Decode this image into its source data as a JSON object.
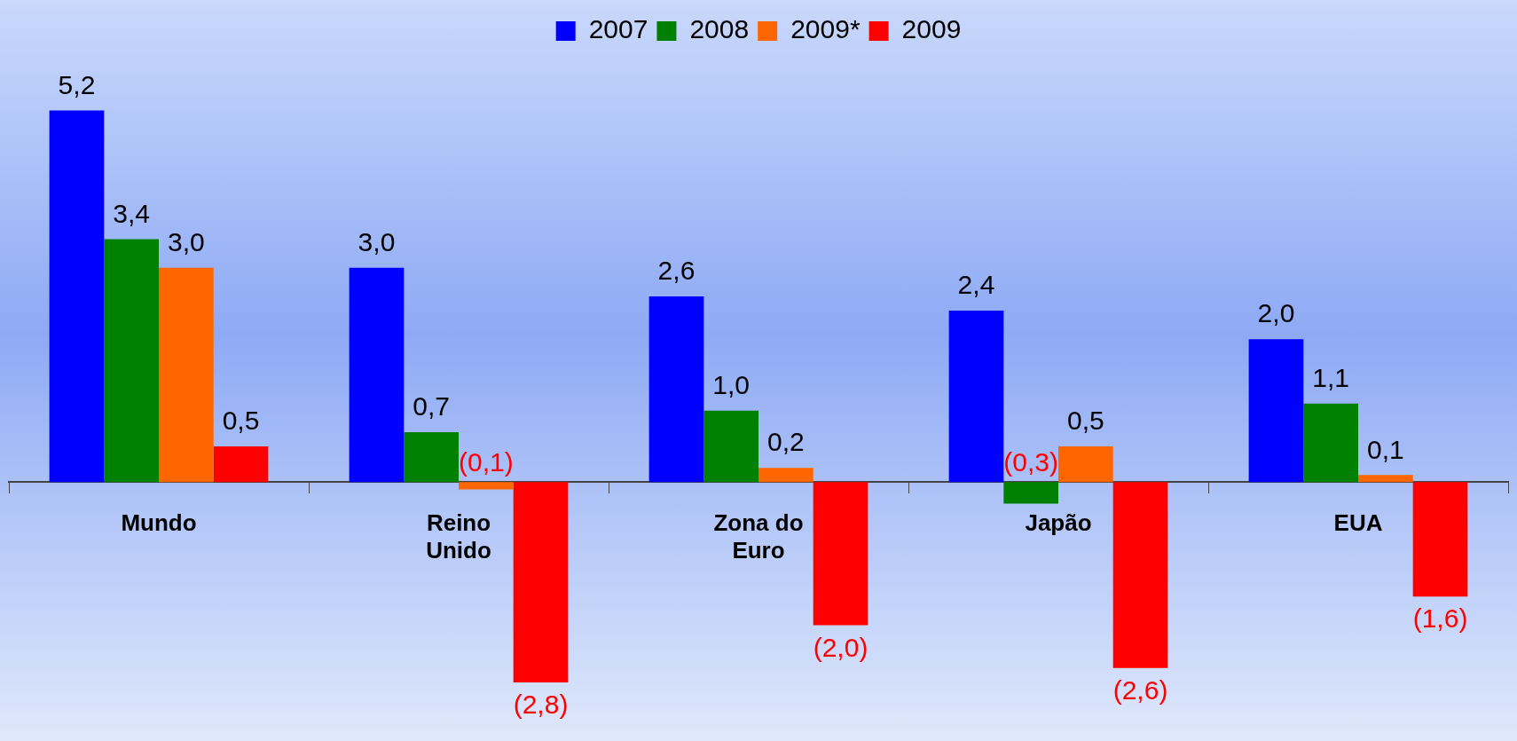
{
  "chart_data": {
    "type": "bar",
    "categories": [
      "Mundo",
      "Reino Unido",
      "Zona do Euro",
      "Japão",
      "EUA"
    ],
    "series": [
      {
        "name": "2007",
        "color": "#0000ff",
        "values": [
          5.2,
          3.0,
          2.6,
          2.4,
          2.0
        ],
        "value_labels": [
          "5,2",
          "3,0",
          "2,6",
          "2,4",
          "2,0"
        ]
      },
      {
        "name": "2008",
        "color": "#008000",
        "values": [
          3.4,
          0.7,
          1.0,
          -0.3,
          1.1
        ],
        "value_labels": [
          "3,4",
          "0,7",
          "1,0",
          "(0,3)",
          "1,1"
        ]
      },
      {
        "name": "2009*",
        "color": "#ff6600",
        "values": [
          3.0,
          -0.1,
          0.2,
          0.5,
          0.1
        ],
        "value_labels": [
          "3,0",
          "(0,1)",
          "0,2",
          "0,5",
          "0,1"
        ]
      },
      {
        "name": "2009",
        "color": "#ff0000",
        "values": [
          0.5,
          -2.8,
          -2.0,
          -2.6,
          -1.6
        ],
        "value_labels": [
          "0,5",
          "(2,8)",
          "(2,0)",
          "(2,6)",
          "(1,6)"
        ]
      }
    ],
    "tick_labels": "x",
    "grid": false,
    "legend": "top"
  }
}
